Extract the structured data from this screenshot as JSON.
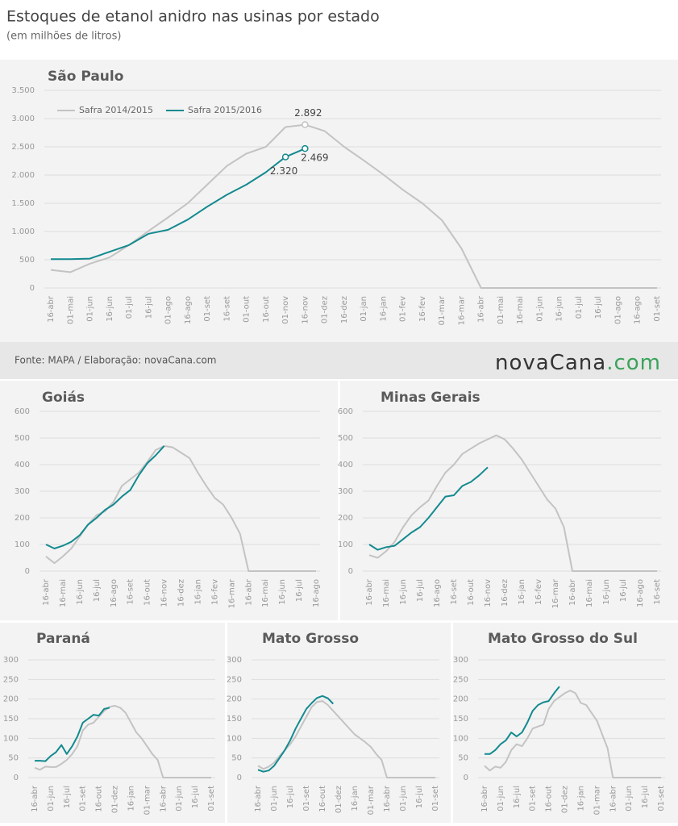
{
  "title": "Estoques de etanol anidro nas usinas por estado",
  "subtitle": "(em milhões de litros)",
  "source": "Fonte: MAPA / Elaboração: novaCana.com",
  "logo": {
    "name": "novaCana",
    "domain": ".com"
  },
  "chart_data": [
    {
      "type": "line",
      "title": "São Paulo",
      "legend": "top-left",
      "grid": true,
      "ylim": [
        0,
        3500
      ],
      "yticks": [
        0,
        500,
        {
          "value": 1000,
          "label": "1.000"
        },
        {
          "value": 1500,
          "label": "1.500"
        },
        {
          "value": 2000,
          "label": "2.000"
        },
        {
          "value": 2500,
          "label": "2.500"
        },
        {
          "value": 3000,
          "label": "3.000"
        },
        {
          "value": 3500,
          "label": "3.500"
        }
      ],
      "categories": [
        "16-abr",
        "01-mai",
        "01-jun",
        "16-jun",
        "01-jul",
        "16-jul",
        "01-ago",
        "16-ago",
        "01-set",
        "16-set",
        "01-out",
        "16-out",
        "01-nov",
        "16-nov",
        "01-dez",
        "16-dez",
        "01-jan",
        "16-jan",
        "01-fev",
        "16-fev",
        "01-mar",
        "16-mar",
        "16-abr",
        "01-mai",
        "16-mai",
        "01-jun",
        "16-jun",
        "01-jul",
        "16-jul",
        "01-ago",
        "16-ago",
        "01-set"
      ],
      "series": [
        {
          "name": "Safra 2014/2015",
          "color": "#c3c3c3",
          "values": [
            320,
            280,
            430,
            540,
            760,
            1010,
            1250,
            1500,
            1830,
            2160,
            2380,
            2500,
            2850,
            2892,
            2780,
            2500,
            2260,
            2010,
            1740,
            1500,
            1200,
            700,
            0,
            0,
            0,
            0,
            0,
            0,
            0,
            0,
            0,
            0
          ],
          "value_labels": [
            null,
            null,
            null,
            null,
            null,
            null,
            null,
            null,
            null,
            null,
            null,
            null,
            null,
            "2.892",
            null,
            null,
            null,
            null,
            null,
            null,
            null,
            null,
            null,
            null,
            null,
            null,
            null,
            null,
            null,
            null,
            null,
            null
          ]
        },
        {
          "name": "Safra 2015/2016",
          "color": "#138a8f",
          "values": [
            510,
            510,
            520,
            640,
            760,
            960,
            1030,
            1210,
            1440,
            1650,
            1830,
            2050,
            2320,
            2469,
            null,
            null,
            null,
            null,
            null,
            null,
            null,
            null,
            null,
            null,
            null,
            null,
            null,
            null,
            null,
            null,
            null,
            null
          ],
          "value_labels": [
            null,
            null,
            null,
            null,
            null,
            null,
            null,
            null,
            null,
            null,
            null,
            null,
            "2.320",
            "2.469",
            null,
            null,
            null,
            null,
            null,
            null,
            null,
            null,
            null,
            null,
            null,
            null,
            null,
            null,
            null,
            null,
            null,
            null
          ]
        }
      ]
    },
    {
      "type": "line",
      "title": "Goiás",
      "grid": true,
      "ylim": [
        0,
        600
      ],
      "yticks": [
        0,
        100,
        200,
        300,
        400,
        500,
        600
      ],
      "categories": [
        "16-abr",
        null,
        "16-mai",
        null,
        "16-jun",
        null,
        "16-jul",
        null,
        "16-ago",
        null,
        "16-set",
        null,
        "16-out",
        null,
        "16-nov",
        null,
        "16-dez",
        null,
        "16-jan",
        null,
        "16-fev",
        null,
        "16-mar",
        null,
        "16-abr",
        null,
        "16-mai",
        null,
        "16-jun",
        null,
        "16-jul",
        null,
        "16-ago"
      ],
      "series": [
        {
          "color": "#c3c3c3",
          "values": [
            55,
            30,
            55,
            85,
            130,
            175,
            210,
            225,
            260,
            320,
            345,
            370,
            410,
            455,
            470,
            465,
            445,
            425,
            370,
            320,
            275,
            250,
            200,
            140,
            0,
            0,
            0,
            0,
            0,
            0,
            0,
            0,
            0
          ]
        },
        {
          "color": "#138a8f",
          "values": [
            100,
            85,
            95,
            110,
            135,
            175,
            200,
            230,
            250,
            280,
            305,
            360,
            405,
            435,
            470,
            null,
            null,
            null,
            null,
            null,
            null,
            null,
            null,
            null,
            null,
            null,
            null,
            null,
            null,
            null,
            null,
            null,
            null
          ]
        }
      ]
    },
    {
      "type": "line",
      "title": "Minas Gerais",
      "grid": true,
      "ylim": [
        0,
        600
      ],
      "yticks": [
        0,
        100,
        200,
        300,
        400,
        500,
        600
      ],
      "categories": [
        "16-abr",
        null,
        "16-mai",
        null,
        "16-jun",
        null,
        "16-jul",
        null,
        "16-ago",
        null,
        "16-set",
        null,
        "16-out",
        null,
        "16-nov",
        null,
        "16-dez",
        null,
        "16-jan",
        null,
        "16-fev",
        null,
        "16-mar",
        null,
        "16-abr",
        null,
        "16-mai",
        null,
        "16-jun",
        null,
        "16-jul",
        null,
        "16-ago",
        null,
        "16-set"
      ],
      "series": [
        {
          "color": "#c3c3c3",
          "values": [
            60,
            50,
            75,
            110,
            165,
            210,
            240,
            265,
            320,
            370,
            400,
            440,
            460,
            480,
            495,
            510,
            495,
            460,
            420,
            370,
            320,
            270,
            235,
            165,
            0,
            0,
            0,
            0,
            0,
            0,
            0,
            0,
            0,
            0,
            0
          ]
        },
        {
          "color": "#138a8f",
          "values": [
            100,
            80,
            90,
            95,
            120,
            145,
            165,
            200,
            240,
            280,
            285,
            320,
            335,
            360,
            390,
            null,
            null,
            null,
            null,
            null,
            null,
            null,
            null,
            null,
            null,
            null,
            null,
            null,
            null,
            null,
            null,
            null,
            null,
            null,
            null
          ]
        }
      ]
    },
    {
      "type": "line",
      "title": "Paraná",
      "grid": true,
      "ylim": [
        0,
        300
      ],
      "yticks": [
        0,
        50,
        100,
        150,
        200,
        250,
        300
      ],
      "categories": [
        "16-abr",
        null,
        null,
        "01-jun",
        null,
        null,
        "16-jul",
        null,
        null,
        "01-set",
        null,
        null,
        "16-out",
        null,
        null,
        "01-dez",
        null,
        null,
        "16-jan",
        null,
        null,
        "01-mar",
        null,
        null,
        "16-abr",
        null,
        null,
        "01-jun",
        null,
        null,
        "16-jul",
        null,
        null,
        "01-set"
      ],
      "series": [
        {
          "color": "#c3c3c3",
          "values": [
            25,
            20,
            28,
            27,
            27,
            35,
            45,
            60,
            80,
            120,
            135,
            140,
            155,
            170,
            180,
            183,
            178,
            165,
            140,
            115,
            100,
            80,
            60,
            45,
            0,
            0,
            0,
            0,
            0,
            0,
            0,
            0,
            0,
            0
          ]
        },
        {
          "color": "#138a8f",
          "values": [
            43,
            43,
            42,
            55,
            65,
            83,
            60,
            80,
            105,
            140,
            150,
            160,
            158,
            175,
            178,
            null,
            null,
            null,
            null,
            null,
            null,
            null,
            null,
            null,
            null,
            null,
            null,
            null,
            null,
            null,
            null,
            null,
            null,
            null
          ]
        }
      ]
    },
    {
      "type": "line",
      "title": "Mato Grosso",
      "grid": true,
      "ylim": [
        0,
        300
      ],
      "yticks": [
        0,
        50,
        100,
        150,
        200,
        250,
        300
      ],
      "categories": [
        "16-abr",
        null,
        null,
        "01-jun",
        null,
        null,
        "16-jul",
        null,
        null,
        "01-set",
        null,
        null,
        "16-out",
        null,
        null,
        "01-dez",
        null,
        null,
        "16-jan",
        null,
        null,
        "01-mar",
        null,
        null,
        "16-abr",
        null,
        null,
        "01-jun",
        null,
        null,
        "16-jul",
        null,
        null,
        "01-set"
      ],
      "series": [
        {
          "color": "#c3c3c3",
          "values": [
            30,
            22,
            28,
            38,
            55,
            70,
            85,
            105,
            130,
            155,
            180,
            193,
            195,
            185,
            170,
            155,
            140,
            125,
            110,
            100,
            90,
            78,
            60,
            45,
            0,
            0,
            0,
            0,
            0,
            0,
            0,
            0,
            0,
            0
          ]
        },
        {
          "color": "#138a8f",
          "values": [
            20,
            15,
            18,
            30,
            50,
            70,
            95,
            125,
            150,
            175,
            190,
            203,
            208,
            202,
            188,
            null,
            null,
            null,
            null,
            null,
            null,
            null,
            null,
            null,
            null,
            null,
            null,
            null,
            null,
            null,
            null,
            null,
            null,
            null
          ]
        }
      ]
    },
    {
      "type": "line",
      "title": "Mato Grosso do Sul",
      "grid": true,
      "ylim": [
        0,
        300
      ],
      "yticks": [
        0,
        50,
        100,
        150,
        200,
        250,
        300
      ],
      "categories": [
        "16-abr",
        null,
        null,
        "01-jun",
        null,
        null,
        "16-jul",
        null,
        null,
        "01-set",
        null,
        null,
        "16-out",
        null,
        null,
        "01-dez",
        null,
        null,
        "16-jan",
        null,
        null,
        "01-mar",
        null,
        null,
        "16-abr",
        null,
        null,
        "01-jun",
        null,
        null,
        "16-jul",
        null,
        null,
        "01-set"
      ],
      "series": [
        {
          "color": "#c3c3c3",
          "values": [
            30,
            18,
            28,
            25,
            40,
            70,
            85,
            80,
            100,
            125,
            130,
            135,
            175,
            195,
            205,
            215,
            222,
            215,
            190,
            185,
            165,
            145,
            110,
            75,
            0,
            0,
            0,
            0,
            0,
            0,
            0,
            0,
            0,
            0
          ]
        },
        {
          "color": "#138a8f",
          "values": [
            60,
            60,
            70,
            85,
            95,
            115,
            105,
            115,
            140,
            170,
            185,
            192,
            195,
            215,
            232,
            null,
            null,
            null,
            null,
            null,
            null,
            null,
            null,
            null,
            null,
            null,
            null,
            null,
            null,
            null,
            null,
            null,
            null,
            null
          ]
        }
      ]
    }
  ]
}
